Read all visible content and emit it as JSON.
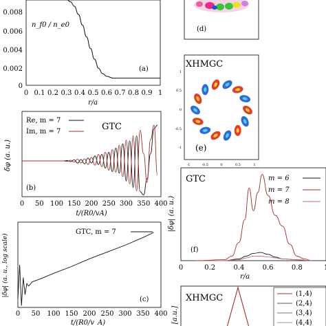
{
  "panels": {
    "a": {
      "tag": "(a)",
      "annotation": "n_f0 / n_e0",
      "xlabel": "r/a",
      "yticks": [
        "0.008",
        "0.006",
        "0.004",
        "0.002",
        "0"
      ],
      "xticks": [
        "0",
        "0.1",
        "0.2",
        "0.3",
        "0.4",
        "0.5",
        "0.6",
        "0.7",
        "0.8",
        "0.9",
        "1"
      ]
    },
    "b": {
      "tag": "(b)",
      "legend": [
        "Re, m = 7",
        "Im, m = 7"
      ],
      "code_label": "GTC",
      "ylabel": "δφ (a. u.)",
      "xlabel": "t/(R0/vA)",
      "xticks": [
        "0",
        "50",
        "100",
        "150",
        "200",
        "250",
        "300",
        "350",
        "400"
      ]
    },
    "c": {
      "tag": "(c)",
      "legend": "GTC, m = 7",
      "ylabel": "|δφ| (a. u., log scale)",
      "xlabel": "t/(R0/v_A)",
      "xticks": [
        "0",
        "50",
        "100",
        "150",
        "200",
        "250",
        "300",
        "350",
        "400"
      ]
    },
    "d": {
      "tag": "(d)"
    },
    "e": {
      "tag": "(e)",
      "title": "XHMGC",
      "yticks": [
        "1",
        "0.5",
        "0",
        "-0.5",
        "-1"
      ],
      "xticks": [
        "-1",
        "-0.5",
        "0",
        "0.5",
        "1"
      ]
    },
    "f": {
      "tag": "(f)",
      "code_label": "GTC",
      "legend": [
        "m = 6",
        "m = 7",
        "m = 8"
      ],
      "ylabel": "|δφ| (a. u.)",
      "xlabel": "r/a",
      "xticks": [
        "0",
        "0.2",
        "0.4",
        "0.6",
        "0.8",
        "1"
      ]
    },
    "g": {
      "title": "XHMGC",
      "legend": [
        "(1,4)",
        "(2,4)",
        "(3,4)",
        "(4,4)"
      ],
      "ylabel": "[a.u.]"
    }
  },
  "colors": {
    "black_series": "#111111",
    "red_series": "#a0302a"
  },
  "chart_data": [
    {
      "type": "line",
      "panel": "a",
      "annotation": "n_f0 / n_e0",
      "xlabel": "r/a",
      "xlim": [
        0,
        1
      ],
      "ylim": [
        0,
        0.0095
      ],
      "series": [
        {
          "x": [
            0.0,
            0.1,
            0.2,
            0.3,
            0.33,
            0.36,
            0.39,
            0.42,
            0.45,
            0.48,
            0.51,
            0.54,
            0.57,
            0.6,
            0.65,
            0.7,
            0.8,
            0.9,
            1.0
          ],
          "values": [
            0.0098,
            0.0098,
            0.0098,
            0.0096,
            0.0093,
            0.0088,
            0.0079,
            0.0067,
            0.0054,
            0.0041,
            0.0029,
            0.0019,
            0.0013,
            0.001,
            0.0008,
            0.0008,
            0.0008,
            0.0008,
            0.0008
          ]
        }
      ]
    },
    {
      "type": "line",
      "panel": "b",
      "xlabel": "t/(R0/vA)",
      "ylabel": "δφ (a. u.)",
      "xlim": [
        0,
        400
      ],
      "series": [
        {
          "name": "Re, m = 7",
          "x": [
            0,
            120,
            130,
            140,
            150,
            160,
            170,
            180,
            190,
            200,
            210,
            220,
            230,
            240,
            250,
            260,
            270,
            280,
            290,
            300,
            310,
            320,
            330,
            340,
            350,
            360,
            370,
            380,
            390
          ],
          "values": [
            0,
            0,
            0.01,
            -0.02,
            0.03,
            -0.06,
            0.04,
            -0.08,
            0.08,
            -0.06,
            0.14,
            -0.1,
            0.18,
            -0.2,
            0.24,
            -0.3,
            0.36,
            -0.34,
            0.48,
            -0.56,
            0.56,
            -0.74,
            0.7,
            -0.86,
            -0.95,
            -0.5,
            0.2,
            0.9,
            1.0
          ]
        },
        {
          "name": "Im, m = 7",
          "x": [
            0,
            120,
            130,
            140,
            150,
            160,
            170,
            180,
            190,
            200,
            210,
            220,
            230,
            240,
            250,
            260,
            270,
            280,
            290,
            300,
            310,
            320,
            330,
            340,
            350,
            360,
            370,
            380,
            390
          ],
          "values": [
            0,
            0,
            -0.01,
            0.02,
            -0.03,
            0.05,
            -0.06,
            0.06,
            -0.1,
            0.1,
            -0.12,
            0.18,
            -0.16,
            0.24,
            -0.26,
            0.32,
            -0.32,
            0.44,
            -0.44,
            0.58,
            -0.64,
            0.7,
            -0.84,
            0.86,
            0.2,
            -0.6,
            0.6,
            1.0,
            -0.4
          ]
        }
      ]
    },
    {
      "type": "line",
      "panel": "c",
      "xlabel": "t/(R0/v_A)",
      "ylabel": "|δφ| (a. u., log scale)",
      "xlim": [
        0,
        400
      ],
      "series": [
        {
          "name": "GTC, m = 7",
          "x": [
            0,
            5,
            10,
            15,
            20,
            25,
            30,
            40,
            60,
            100,
            150,
            200,
            250,
            300,
            350,
            380
          ],
          "values": [
            0.1,
            0.5,
            0.02,
            0.35,
            0.15,
            0.28,
            0.25,
            0.3,
            0.33,
            0.4,
            0.48,
            0.57,
            0.65,
            0.73,
            0.82,
            0.88
          ]
        }
      ]
    },
    {
      "type": "line",
      "panel": "f",
      "xlabel": "r/a",
      "ylabel": "|δφ| (a. u.)",
      "xlim": [
        0,
        1
      ],
      "series": [
        {
          "name": "m = 6",
          "x": [
            0.1,
            0.3,
            0.4,
            0.45,
            0.5,
            0.55,
            0.6,
            0.65,
            0.7,
            0.8,
            0.9
          ],
          "values": [
            0,
            0,
            0.02,
            0.05,
            0.08,
            0.09,
            0.07,
            0.04,
            0.02,
            0.01,
            0
          ]
        },
        {
          "name": "m = 7",
          "x": [
            0.1,
            0.3,
            0.35,
            0.4,
            0.44,
            0.47,
            0.5,
            0.53,
            0.56,
            0.6,
            0.65,
            0.7,
            0.75,
            0.8,
            0.85,
            0.9
          ],
          "values": [
            0,
            0.01,
            0.05,
            0.2,
            0.45,
            0.8,
            0.55,
            0.75,
            0.95,
            0.72,
            0.5,
            0.38,
            0.18,
            0.05,
            0.02,
            0
          ]
        },
        {
          "name": "m = 8",
          "x": [
            0.1,
            0.3,
            0.4,
            0.45,
            0.5,
            0.55,
            0.6,
            0.65,
            0.7,
            0.8,
            0.9
          ],
          "values": [
            0,
            0,
            0.01,
            0.03,
            0.05,
            0.05,
            0.04,
            0.03,
            0.02,
            0.01,
            0
          ]
        }
      ]
    }
  ]
}
